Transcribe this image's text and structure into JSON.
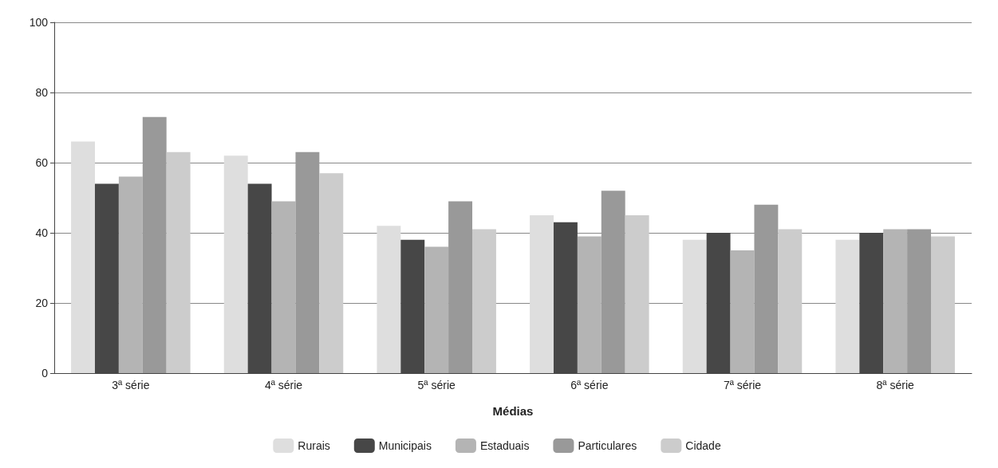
{
  "chart_data": {
    "type": "bar",
    "xlabel": "Médias",
    "categories": [
      "3ª série",
      "4ª série",
      "5ª série",
      "6ª série",
      "7ª série",
      "8ª série"
    ],
    "series": [
      {
        "name": "Rurais",
        "color": "#dedede",
        "values": [
          66,
          62,
          42,
          45,
          38,
          38
        ]
      },
      {
        "name": "Municipais",
        "color": "#474747",
        "values": [
          54,
          54,
          38,
          43,
          40,
          40
        ]
      },
      {
        "name": "Estaduais",
        "color": "#b4b4b4",
        "values": [
          56,
          49,
          36,
          39,
          35,
          41
        ]
      },
      {
        "name": "Particulares",
        "color": "#999999",
        "values": [
          73,
          63,
          49,
          52,
          48,
          41
        ]
      },
      {
        "name": "Cidade",
        "color": "#cccccc",
        "values": [
          63,
          57,
          41,
          45,
          41,
          39
        ]
      }
    ],
    "ylim": [
      0,
      100
    ],
    "yticks": [
      0,
      20,
      40,
      60,
      80,
      100
    ],
    "grid": "y",
    "legend": "bottom"
  }
}
